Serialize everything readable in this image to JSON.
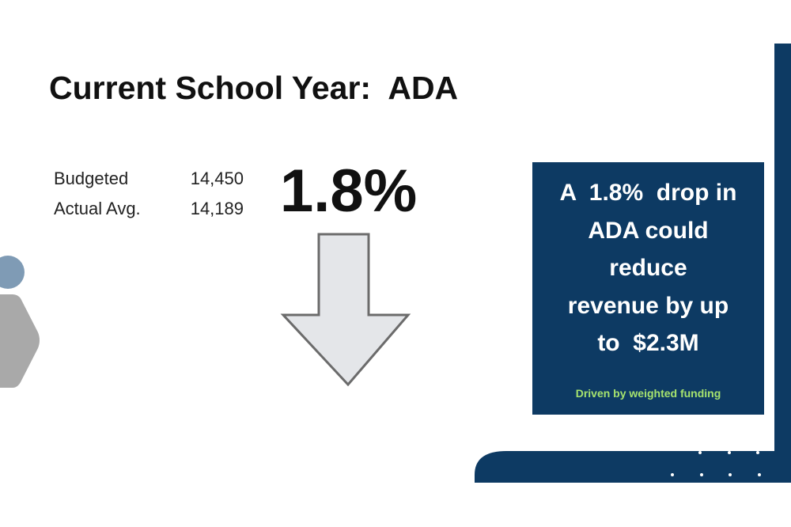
{
  "slide": {
    "title": "Current School Year:  ADA",
    "stats": [
      {
        "label": "Budgeted",
        "value": "14,450"
      },
      {
        "label": "Actual Avg.",
        "value": "14,189"
      }
    ],
    "change": "1.8%",
    "callout": {
      "lines": [
        "A  1.8%  drop in",
        "ADA could",
        "reduce",
        "revenue by up",
        "to  $2.3M"
      ],
      "note": "Driven by weighted funding"
    }
  }
}
